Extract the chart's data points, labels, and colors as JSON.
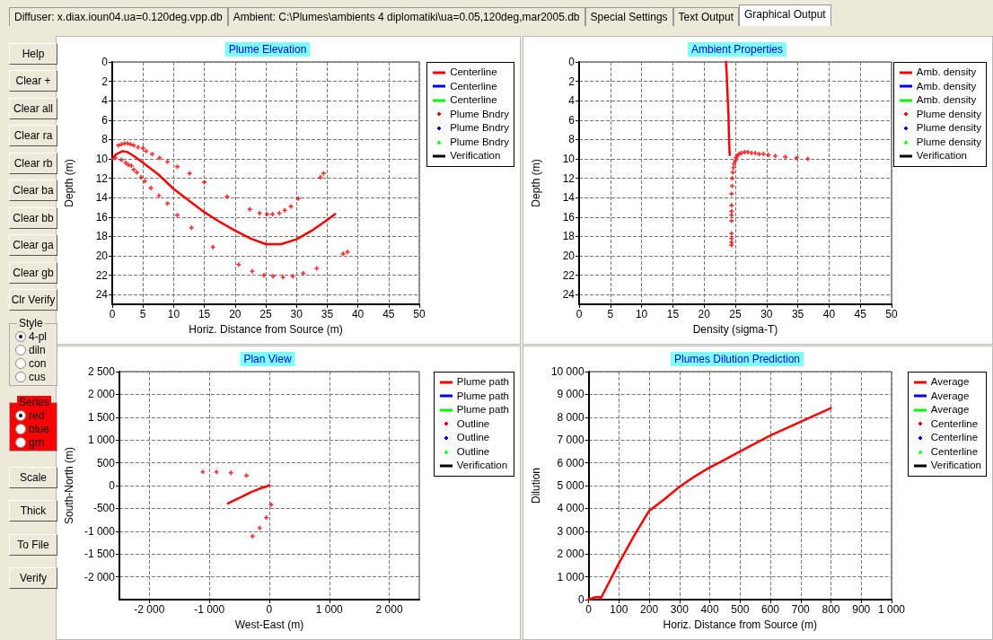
{
  "chart_data": [
    {
      "type": "line",
      "title": "Plume Elevation",
      "xlabel": "Horiz. Distance from Source (m)",
      "ylabel": "Depth (m)",
      "xlim": [
        0,
        50
      ],
      "ylim": [
        25,
        0
      ],
      "xticks": [
        0,
        5,
        10,
        15,
        20,
        25,
        30,
        35,
        40,
        45,
        50
      ],
      "yticks": [
        0,
        2,
        4,
        6,
        8,
        10,
        12,
        14,
        16,
        18,
        20,
        22,
        24
      ],
      "grid": true,
      "legend": "top right",
      "line_style": "solid",
      "series": [
        {
          "name": "Centerline",
          "type": "line",
          "color": "#ff0000",
          "x": [
            0,
            0.5,
            1,
            1.7,
            2.5,
            3.5,
            5,
            7.5,
            10,
            12.5,
            15,
            17.5,
            20,
            22.5,
            25,
            27.5,
            30,
            32.5,
            35,
            36.3
          ],
          "values": [
            10,
            9.6,
            9.4,
            9.2,
            9.3,
            9.7,
            10.4,
            11.6,
            13.1,
            14.3,
            15.5,
            16.5,
            17.4,
            18.2,
            18.8,
            18.8,
            18.3,
            17.4,
            16.3,
            15.7
          ]
        },
        {
          "name": "Centerline",
          "type": "line",
          "color": "#0000ff"
        },
        {
          "name": "Centerline",
          "type": "line",
          "color": "#00ff00"
        },
        {
          "name": "Plume Bndry",
          "type": "scatter",
          "marker": "cross",
          "color": "#ff0000",
          "x": [
            1,
            1.5,
            2,
            2.5,
            3,
            3.5,
            4.2,
            5,
            5.5,
            6.5,
            7.7,
            9,
            10.6,
            12.6,
            15,
            18.7,
            22.4,
            24,
            25.2,
            26.1,
            27.2,
            28.1,
            29.1,
            30.3,
            33.9,
            34.4,
            0.5,
            1.5,
            2.2,
            2.6,
            3.1,
            3.5,
            4,
            4.7,
            5.3,
            6.3,
            7.6,
            9,
            10.6,
            12.9,
            16.4,
            20.6,
            22.8,
            24.7,
            26.2,
            27.8,
            29.4,
            31.1,
            33.3,
            37.6,
            38.3
          ],
          "values": [
            8.6,
            8.5,
            8.4,
            8.4,
            8.5,
            8.6,
            8.8,
            8.9,
            9.2,
            9.5,
            9.9,
            10.3,
            10.8,
            11.5,
            12.4,
            13.9,
            15.2,
            15.6,
            15.7,
            15.7,
            15.6,
            15.3,
            14.9,
            14.1,
            11.9,
            11.5,
            9.9,
            10.1,
            10.4,
            10.6,
            10.7,
            11.1,
            11.4,
            11.9,
            12.3,
            13,
            13.8,
            14.6,
            15.8,
            17.1,
            19.1,
            20.9,
            21.6,
            22,
            22.1,
            22.2,
            22.1,
            21.8,
            21.3,
            19.8,
            19.6
          ]
        },
        {
          "name": "Plume Bndry",
          "type": "scatter",
          "marker": "cross",
          "color": "#0000ff"
        },
        {
          "name": "Plume Bndry",
          "type": "scatter",
          "marker": "triangle",
          "color": "#00ff00"
        },
        {
          "name": "Verification",
          "type": "line",
          "color": "#000000"
        }
      ]
    },
    {
      "type": "line",
      "title": "Ambient Properties",
      "xlabel": "Density (sigma-T)",
      "ylabel": "Depth (m)",
      "xlim": [
        0,
        50
      ],
      "ylim": [
        25,
        0
      ],
      "xticks": [
        0,
        5,
        10,
        15,
        20,
        25,
        30,
        35,
        40,
        45,
        50
      ],
      "yticks": [
        0,
        2,
        4,
        6,
        8,
        10,
        12,
        14,
        16,
        18,
        20,
        22,
        24
      ],
      "grid": true,
      "legend": "top right",
      "line_style": "solid",
      "series": [
        {
          "name": "Amb. density",
          "type": "line",
          "color": "#ff0000",
          "x": [
            23.5,
            23.6,
            23.7,
            23.8,
            23.9,
            24,
            24.1
          ],
          "values": [
            0,
            1,
            2.5,
            4,
            5.5,
            8,
            9.6
          ]
        },
        {
          "name": "Amb. density",
          "type": "line",
          "color": "#0000ff"
        },
        {
          "name": "Amb. density",
          "type": "line",
          "color": "#00ff00"
        },
        {
          "name": "Plume density",
          "type": "scatter",
          "marker": "cross",
          "color": "#ff0000",
          "x": [
            36.6,
            34.8,
            33,
            31.4,
            30.3,
            29.5,
            28.8,
            28.2,
            27.6,
            27,
            26.5,
            26,
            25.6,
            25.3,
            25.1,
            25,
            24.8,
            24.7,
            24.6,
            24.5,
            24.5,
            24.4,
            24.4,
            24.4,
            24.4,
            24.4,
            24.4,
            24.4,
            24.4,
            24.4
          ],
          "values": [
            10,
            9.9,
            9.8,
            9.7,
            9.6,
            9.5,
            9.5,
            9.4,
            9.4,
            9.3,
            9.3,
            9.4,
            9.5,
            9.7,
            9.9,
            10.2,
            10.5,
            10.9,
            11.4,
            12,
            12.8,
            13.6,
            14.8,
            15.4,
            15.8,
            16.4,
            17.7,
            18.2,
            18.6,
            18.9
          ]
        },
        {
          "name": "Plume density",
          "type": "scatter",
          "marker": "cross",
          "color": "#0000ff"
        },
        {
          "name": "Plume density",
          "type": "scatter",
          "marker": "triangle",
          "color": "#00ff00"
        },
        {
          "name": "Verification",
          "type": "line",
          "color": "#000000"
        }
      ]
    },
    {
      "type": "line",
      "title": "Plan View",
      "xlabel": "West-East (m)",
      "ylabel": "South-North (m)",
      "xlim": [
        -2500,
        2500
      ],
      "ylim": [
        -2500,
        2500
      ],
      "xticks": [
        {
          "value": -2000,
          "label": "-2 000"
        },
        {
          "value": -1000,
          "label": "-1 000"
        },
        0,
        {
          "value": 1000,
          "label": "1 000"
        },
        {
          "value": 2000,
          "label": "2 000"
        }
      ],
      "yticks": [
        {
          "value": -2000,
          "label": "-2 000"
        },
        {
          "value": -1500,
          "label": "-1 500"
        },
        {
          "value": -1000,
          "label": "-1 000"
        },
        -500,
        0,
        500,
        {
          "value": 1000,
          "label": "1 000"
        },
        {
          "value": 1500,
          "label": "1 500"
        },
        {
          "value": 2000,
          "label": "2 000"
        },
        {
          "value": 2500,
          "label": "2 500"
        }
      ],
      "grid": true,
      "legend": "top right",
      "line_style": "solid",
      "series": [
        {
          "name": "Plume path",
          "type": "line",
          "color": "#ff0000",
          "x": [
            0,
            -50,
            -150,
            -300,
            -450,
            -600,
            -690
          ],
          "values": [
            10,
            -20,
            -60,
            -140,
            -240,
            -330,
            -390
          ]
        },
        {
          "name": "Plume path",
          "type": "line",
          "color": "#0000ff"
        },
        {
          "name": "Plume path",
          "type": "line",
          "color": "#00ff00"
        },
        {
          "name": "Outline",
          "type": "scatter",
          "marker": "cross",
          "color": "#ff0000",
          "x": [
            -1110,
            -880,
            -640,
            -380,
            30,
            -50,
            -160,
            -280
          ],
          "values": [
            300,
            300,
            280,
            220,
            -420,
            -700,
            -930,
            -1110
          ]
        },
        {
          "name": "Outline",
          "type": "scatter",
          "marker": "cross",
          "color": "#0000ff"
        },
        {
          "name": "Outline",
          "type": "scatter",
          "marker": "triangle",
          "color": "#00ff00"
        },
        {
          "name": "Verification",
          "type": "line",
          "color": "#000000"
        }
      ]
    },
    {
      "type": "line",
      "title": "Plumes Dilution Prediction",
      "xlabel": "Horiz. Distance from Source (m)",
      "ylabel": "Dilution",
      "xlim": [
        0,
        1000
      ],
      "ylim": [
        0,
        10000
      ],
      "xticks": [
        0,
        100,
        200,
        300,
        400,
        500,
        600,
        700,
        800,
        900,
        {
          "value": 1000,
          "label": "1 000"
        }
      ],
      "yticks": [
        0,
        {
          "value": 1000,
          "label": "1 000"
        },
        {
          "value": 2000,
          "label": "2 000"
        },
        {
          "value": 3000,
          "label": "3 000"
        },
        {
          "value": 4000,
          "label": "4 000"
        },
        {
          "value": 5000,
          "label": "5 000"
        },
        {
          "value": 6000,
          "label": "6 000"
        },
        {
          "value": 7000,
          "label": "7 000"
        },
        {
          "value": 8000,
          "label": "8 000"
        },
        {
          "value": 9000,
          "label": "9 000"
        },
        {
          "value": 10000,
          "label": "10 000"
        }
      ],
      "grid": true,
      "legend": "top right",
      "line_style": "solid",
      "series": [
        {
          "name": "Average",
          "type": "line",
          "color": "#ff0000",
          "x": [
            0,
            10,
            20,
            35,
            40,
            100,
            150,
            200,
            250,
            300,
            350,
            400,
            430,
            500,
            600,
            700,
            800
          ],
          "values": [
            0,
            50,
            100,
            120,
            50,
            1600,
            2800,
            3900,
            4400,
            4950,
            5400,
            5800,
            6000,
            6500,
            7200,
            7800,
            8400
          ]
        },
        {
          "name": "Average",
          "type": "line",
          "color": "#0000ff"
        },
        {
          "name": "Average",
          "type": "line",
          "color": "#00ff00"
        },
        {
          "name": "Centerline",
          "type": "scatter",
          "marker": "cross",
          "color": "#ff0000"
        },
        {
          "name": "Centerline",
          "type": "scatter",
          "marker": "cross",
          "color": "#0000ff"
        },
        {
          "name": "Centerline",
          "type": "scatter",
          "marker": "triangle",
          "color": "#00ff00"
        },
        {
          "name": "Verification",
          "type": "line",
          "color": "#000000"
        }
      ]
    },
    {
      "type": "other",
      "annotations": [
        "Diffuser: x.diax.ioun04.ua=0.120deg.vpp.db",
        "Ambient: C:\\Plumes\\ambients 4 diplomatiki\\ua=0.05,120deg,mar2005.db",
        "Special Settings",
        "Text Output",
        "Graphical Output"
      ]
    },
    {
      "type": "other",
      "annotations": [
        "Help",
        "Clear +",
        "Clear all",
        "Clear ra",
        "Clear rb",
        "Clear ba",
        "Clear bb",
        "Clear ga",
        "Clear gb",
        "Clr Verify"
      ]
    },
    {
      "type": "other",
      "title": "Style",
      "annotations": [
        "4-pl",
        "diln",
        "con",
        "cus"
      ]
    },
    {
      "type": "other",
      "title": "Series",
      "annotations": [
        "red",
        "blue",
        "grn"
      ]
    },
    {
      "type": "other",
      "annotations": [
        "Scale",
        "Thick",
        "To File",
        "Verify"
      ]
    }
  ]
}
